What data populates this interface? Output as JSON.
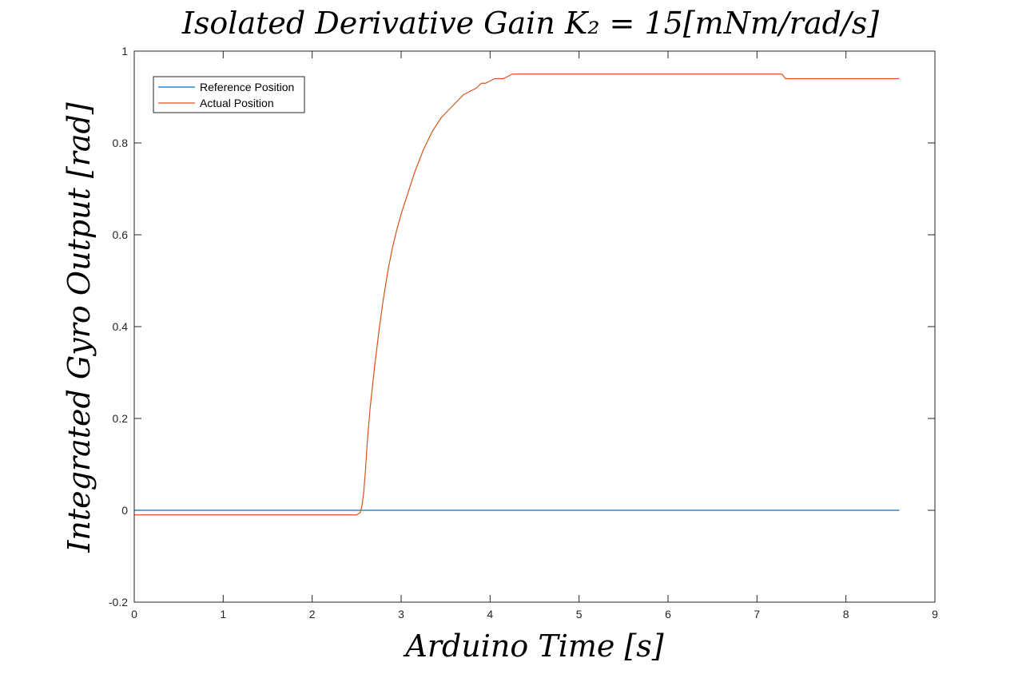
{
  "chart_data": {
    "type": "line",
    "title": "Isolated Derivative Gain K₂ = 15[mNm/rad/s]",
    "xlabel": "Arduino Time [s]",
    "ylabel": "Integrated Gyro Output [rad]",
    "xlim": [
      0,
      9
    ],
    "ylim": [
      -0.2,
      1
    ],
    "xticks": [
      0,
      1,
      2,
      3,
      4,
      5,
      6,
      7,
      8,
      9
    ],
    "yticks": [
      -0.2,
      0,
      0.2,
      0.4,
      0.6,
      0.8,
      1
    ],
    "grid": false,
    "legend_position": "top-left",
    "series": [
      {
        "name": "Reference Position",
        "color": "#0072BD",
        "x": [
          0,
          8.6
        ],
        "y": [
          0,
          0
        ]
      },
      {
        "name": "Actual Position",
        "color": "#D95319",
        "x": [
          0,
          2.5,
          2.54,
          2.56,
          2.58,
          2.6,
          2.62,
          2.65,
          2.7,
          2.75,
          2.8,
          2.85,
          2.9,
          2.95,
          3.0,
          3.05,
          3.1,
          3.15,
          3.2,
          3.25,
          3.3,
          3.35,
          3.4,
          3.45,
          3.5,
          3.55,
          3.6,
          3.65,
          3.7,
          3.75,
          3.8,
          3.85,
          3.9,
          3.95,
          4.0,
          4.05,
          4.1,
          4.15,
          4.2,
          4.25,
          7.28,
          7.32,
          8.6
        ],
        "y": [
          -0.01,
          -0.01,
          -0.005,
          0.01,
          0.04,
          0.09,
          0.15,
          0.22,
          0.31,
          0.39,
          0.46,
          0.52,
          0.57,
          0.61,
          0.645,
          0.675,
          0.705,
          0.735,
          0.76,
          0.785,
          0.805,
          0.825,
          0.84,
          0.855,
          0.865,
          0.875,
          0.885,
          0.895,
          0.905,
          0.91,
          0.915,
          0.92,
          0.93,
          0.93,
          0.935,
          0.94,
          0.94,
          0.94,
          0.945,
          0.95,
          0.95,
          0.94,
          0.94
        ]
      }
    ]
  }
}
